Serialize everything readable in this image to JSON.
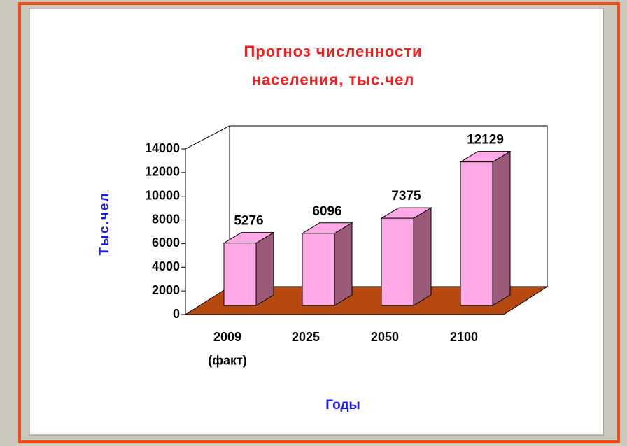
{
  "chart_data": {
    "type": "bar3d",
    "title": "Прогноз численности\nнаселения, тыс.чел",
    "y_label": "Тыс.чел",
    "x_label": "Годы",
    "categories": [
      "2009\n(факт)",
      "2025",
      "2050",
      "2100"
    ],
    "values": [
      5276,
      6096,
      7375,
      12129
    ],
    "color": "#ffaae6",
    "side_color": "#9a5a78",
    "floor_color": "#b5490f",
    "ylim": [
      0,
      14000
    ],
    "yticks": [
      0,
      2000,
      4000,
      6000,
      8000,
      10000,
      12000,
      14000
    ]
  }
}
